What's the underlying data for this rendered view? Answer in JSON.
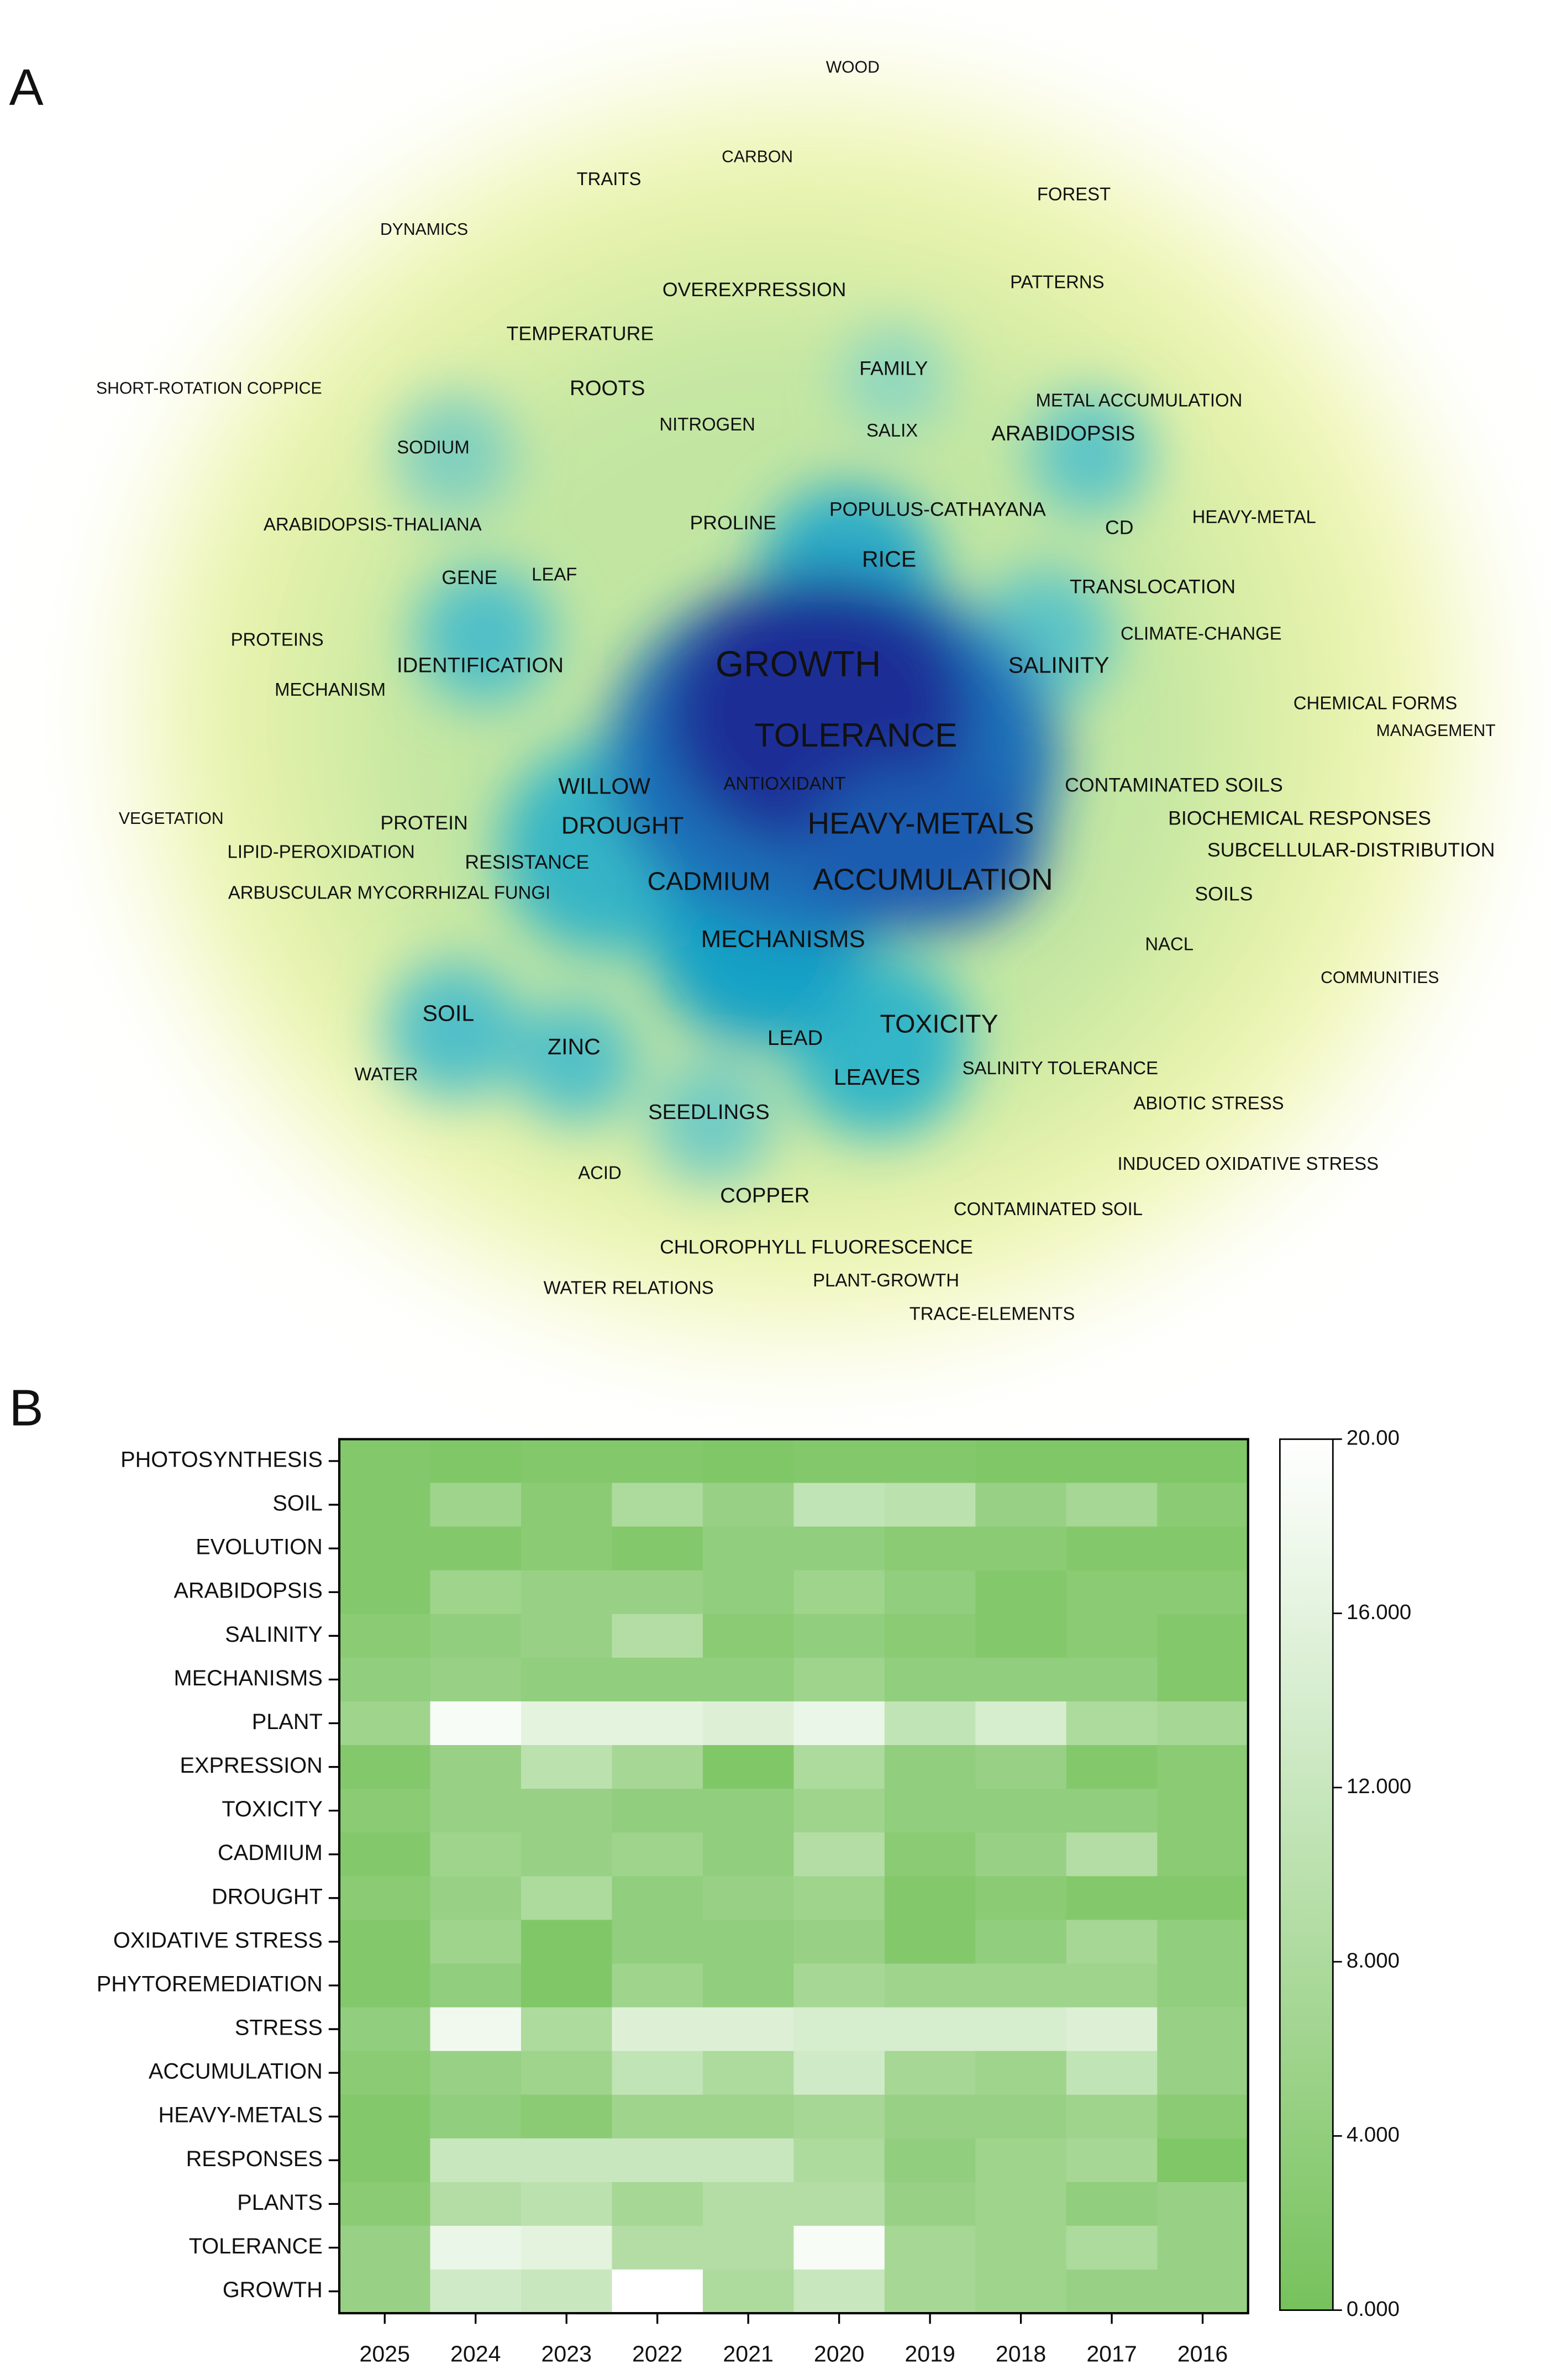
{
  "chart_data": [
    {
      "type": "density",
      "panel": "A",
      "terms": [
        "WOOD",
        "CARBON",
        "TRAITS",
        "FOREST",
        "DYNAMICS",
        "OVEREXPRESSION",
        "PATTERNS",
        "TEMPERATURE",
        "FAMILY",
        "SHORT-ROTATION COPPICE",
        "ROOTS",
        "METAL ACCUMULATION",
        "NITROGEN",
        "SALIX",
        "ARABIDOPSIS",
        "SODIUM",
        "POPULUS-CATHAYANA",
        "HEAVY-METAL",
        "ARABIDOPSIS-THALIANA",
        "PROLINE",
        "CD",
        "RICE",
        "GENE",
        "LEAF",
        "TRANSLOCATION",
        "PROTEINS",
        "CLIMATE-CHANGE",
        "IDENTIFICATION",
        "GROWTH",
        "SALINITY",
        "MECHANISM",
        "CHEMICAL FORMS",
        "MANAGEMENT",
        "TOLERANCE",
        "ANTIOXIDANT",
        "WILLOW",
        "CONTAMINATED SOILS",
        "VEGETATION",
        "BIOCHEMICAL RESPONSES",
        "PROTEIN",
        "DROUGHT",
        "HEAVY-METALS",
        "LIPID-PEROXIDATION",
        "SUBCELLULAR-DISTRIBUTION",
        "RESISTANCE",
        "ARBUSCULAR MYCORRHIZAL FUNGI",
        "CADMIUM",
        "ACCUMULATION",
        "SOILS",
        "MECHANISMS",
        "NACL",
        "COMMUNITIES",
        "SOIL",
        "TOXICITY",
        "ZINC",
        "LEAD",
        "WATER",
        "SALINITY TOLERANCE",
        "LEAVES",
        "ABIOTIC STRESS",
        "SEEDLINGS",
        "INDUCED OXIDATIVE STRESS",
        "ACID",
        "COPPER",
        "CONTAMINATED SOIL",
        "CHLOROPHYLL FLUORESCENCE",
        "PLANT-GROWTH",
        "WATER RELATIONS",
        "TRACE-ELEMENTS"
      ]
    },
    {
      "type": "heatmap",
      "panel": "B",
      "rows": [
        "PHOTOSYNTHESIS",
        "SOIL",
        "EVOLUTION",
        "ARABIDOPSIS",
        "SALINITY",
        "MECHANISMS",
        "PLANT",
        "EXPRESSION",
        "TOXICITY",
        "CADMIUM",
        "DROUGHT",
        "OXIDATIVE STRESS",
        "PHYTOREMEDIATION",
        "STRESS",
        "ACCUMULATION",
        "HEAVY-METALS",
        "RESPONSES",
        "PLANTS",
        "TOLERANCE",
        "GROWTH"
      ],
      "columns": [
        "2025",
        "2024",
        "2023",
        "2022",
        "2021",
        "2020",
        "2019",
        "2018",
        "2017",
        "2016"
      ],
      "values": [
        [
          2,
          1.5,
          2,
          2,
          1.5,
          2,
          2,
          1.5,
          1.5,
          1.5
        ],
        [
          2,
          6,
          3,
          8,
          5,
          11,
          10,
          5,
          7,
          3
        ],
        [
          2,
          2,
          3,
          2,
          4,
          4,
          3,
          3,
          2,
          2
        ],
        [
          2,
          6,
          5,
          5,
          4,
          6,
          4,
          2,
          3,
          3
        ],
        [
          3,
          4,
          5,
          9,
          3,
          4,
          3,
          2,
          3,
          2
        ],
        [
          4,
          5,
          4,
          4,
          4,
          6,
          4,
          4,
          4,
          2
        ],
        [
          6,
          19,
          16,
          16,
          15,
          17,
          11,
          14,
          8,
          7
        ],
        [
          2,
          5,
          10,
          7,
          1.5,
          8,
          4,
          5,
          2,
          3
        ],
        [
          3,
          5,
          5,
          4,
          4,
          6,
          4,
          4,
          4,
          3
        ],
        [
          2,
          6,
          5,
          6,
          4,
          9,
          3,
          5,
          9,
          3
        ],
        [
          3,
          5,
          8,
          4,
          5,
          6,
          2,
          3,
          2,
          2
        ],
        [
          2,
          6,
          1.5,
          4,
          4,
          5,
          2,
          4,
          7,
          4
        ],
        [
          2,
          4,
          1.5,
          6,
          4,
          7,
          6,
          6,
          6,
          4
        ],
        [
          4,
          18,
          8,
          15,
          15,
          14,
          14,
          14,
          15,
          5
        ],
        [
          3,
          5,
          6,
          11,
          8,
          13,
          7,
          6,
          11,
          5
        ],
        [
          2,
          4,
          3,
          6,
          6,
          7,
          5,
          5,
          6,
          3
        ],
        [
          2,
          12,
          12,
          12,
          12,
          8,
          4,
          6,
          7,
          1.5
        ],
        [
          3,
          9,
          10,
          7,
          9,
          9,
          5,
          6,
          4,
          5
        ],
        [
          5,
          17,
          16,
          9,
          9,
          19,
          7,
          6,
          8,
          5
        ],
        [
          5,
          13,
          12,
          20,
          8,
          12,
          7,
          6,
          5,
          5
        ]
      ],
      "colorscale": [
        "#76c25c",
        "#ffffff"
      ],
      "clim": [
        0,
        20
      ],
      "cticks": [
        {
          "value": 0,
          "label": "0.000"
        },
        {
          "value": 4,
          "label": "4.000"
        },
        {
          "value": 8,
          "label": "8.000"
        },
        {
          "value": 12,
          "label": "12.000"
        },
        {
          "value": 16,
          "label": "16.000"
        },
        {
          "value": 20,
          "label": "20.00"
        }
      ]
    }
  ]
}
